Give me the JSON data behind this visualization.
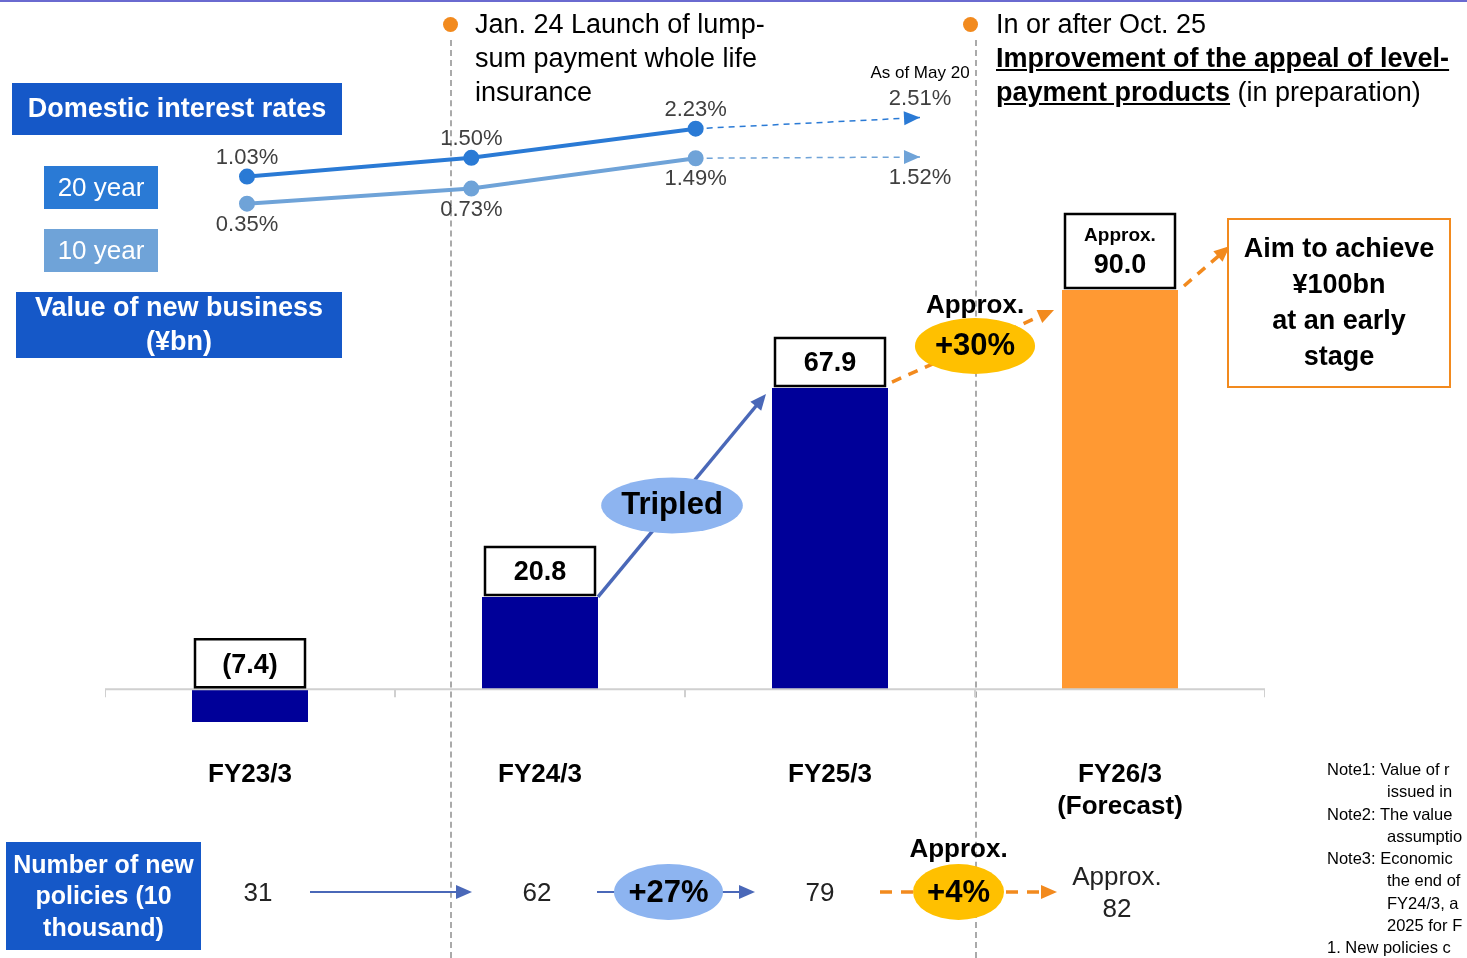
{
  "chart_data": [
    {
      "type": "line",
      "title": "Domestic interest rates",
      "categories": [
        null,
        null,
        null,
        null
      ],
      "legend": "left",
      "marker": "circle",
      "tick_labels": "x",
      "series": [
        {
          "name": "20 year",
          "color": "#2a7ad5",
          "values": [
            1.03,
            1.5,
            2.23,
            null
          ],
          "value_labels": [
            "1.03%",
            "1.50%",
            "2.23%",
            null
          ]
        },
        {
          "name": "10 year",
          "color": "#6fa3d8",
          "values": [
            0.35,
            0.73,
            1.49,
            null
          ],
          "value_labels": [
            "0.35%",
            "0.73%",
            "1.49%",
            null
          ]
        },
        {
          "color": "#2a7ad5",
          "values": [
            null,
            null,
            2.23,
            2.51
          ],
          "value_labels": [
            null,
            null,
            null,
            "2.51%"
          ],
          "line_style": "dashed",
          "marker": "triangle"
        },
        {
          "color": "#6fa3d8",
          "values": [
            null,
            null,
            1.49,
            1.52
          ],
          "value_labels": [
            null,
            null,
            null,
            "1.52%"
          ],
          "line_style": "dashed",
          "marker": "triangle"
        }
      ],
      "annotations": [
        "Jan. 24 Launch of lump-sum payment whole life insurance",
        "In or after Oct. 25",
        "Improvement of the appeal of level-payment products",
        "(in preparation)",
        "As of May 20"
      ]
    },
    {
      "type": "bar",
      "title": "Value of new business (¥bn)",
      "categories": [
        "FY23/3",
        "FY24/3",
        "FY25/3",
        "FY26/3\n(Forecast)"
      ],
      "values": [
        -7.4,
        20.8,
        67.9,
        90.0
      ],
      "colors": [
        "#000099",
        "#000099",
        "#000099",
        "#ff9933"
      ],
      "value_labels": [
        "(7.4)",
        "20.8",
        "67.9",
        "Approx.\n90.0"
      ],
      "annotations": [
        "Tripled",
        "Approx.\n+30%",
        "Aim to achieve\n¥100bn\nat an early\nstage",
        "Note1: Value of r\nissued in",
        "Note2: The value\nassumptio",
        "Note3: Economic\nthe end of\nFY24/3, a\n2025 for F",
        "1. New policies c"
      ]
    },
    {
      "type": "other",
      "title": "Number of new policies (10 thousand)",
      "values": [
        31,
        62,
        79,
        82
      ],
      "value_labels": [
        "31",
        "62",
        "79",
        "Approx.\n82"
      ],
      "annotations": [
        "+27%",
        "Approx.\n+4%"
      ]
    }
  ]
}
